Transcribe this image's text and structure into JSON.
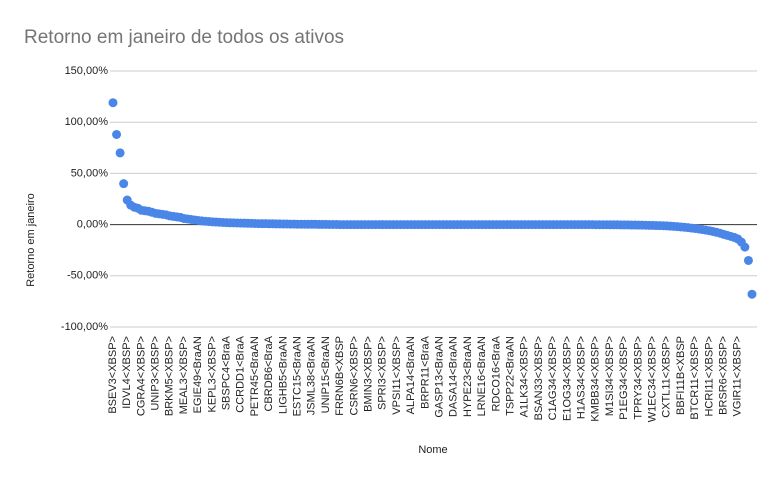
{
  "chart_data": {
    "type": "scatter",
    "title": "Retorno em janeiro de todos os ativos",
    "x_label": "Nome",
    "y_label": "Retorno em janeiro",
    "color": "#4a86e8",
    "grid": true,
    "ylim": [
      -100,
      150
    ],
    "yticks": [
      {
        "value": -100,
        "label": "-100,00%"
      },
      {
        "value": -50,
        "label": "-50,00%"
      },
      {
        "value": 0,
        "label": "0,00%"
      },
      {
        "value": 50,
        "label": "50,00%"
      },
      {
        "value": 100,
        "label": "100,00%"
      },
      {
        "value": 150,
        "label": "150,00%"
      }
    ],
    "categories": [
      "BSEV3<XBSP>",
      null,
      null,
      null,
      "IDVL4<XBSP>",
      null,
      null,
      null,
      "CGRA4<XBSP>",
      null,
      null,
      null,
      "UNIP3<XBSP>",
      null,
      null,
      null,
      "BRKM5<XBSP>",
      null,
      null,
      null,
      "MEAL3<XBSP>",
      null,
      null,
      null,
      "EGIE49<BraAN",
      null,
      null,
      null,
      "KEPL3<XBSP>",
      null,
      null,
      null,
      "SBSPC4<BraA",
      null,
      null,
      null,
      "CCRDD1<BraA",
      null,
      null,
      null,
      "PETR45<BraAN",
      null,
      null,
      null,
      "CBRDB6<BraA",
      null,
      null,
      null,
      "LIGHB5<BraAN",
      null,
      null,
      null,
      "ESTC15<BraAN",
      null,
      null,
      null,
      "JSML38<BraAN",
      null,
      null,
      null,
      "UNIP15<BraAN",
      null,
      null,
      null,
      "FRRN6B<XBSP",
      null,
      null,
      null,
      "CSRN6<XBSP>",
      null,
      null,
      null,
      "BMIN3<XBSP>",
      null,
      null,
      null,
      "SPRI3<XBSP>",
      null,
      null,
      null,
      "VPSI11<XBSP>",
      null,
      null,
      null,
      "ALPA14<BraAN",
      null,
      null,
      null,
      "BRPR11<BraA",
      null,
      null,
      null,
      "GASP13<BraAN",
      null,
      null,
      null,
      "DASA14<BraAN",
      null,
      null,
      null,
      "HYPE23<BraAN",
      null,
      null,
      null,
      "LRNE16<BraAN",
      null,
      null,
      null,
      "RDCO16<BraA",
      null,
      null,
      null,
      "TSPP22<BraAN",
      null,
      null,
      null,
      "A1LK34<XBSP>",
      null,
      null,
      null,
      "BSAN33<XBSP>",
      null,
      null,
      null,
      "C1AG34<XBSP>",
      null,
      null,
      null,
      "E1OG34<XBSP>",
      null,
      null,
      null,
      "H1AS34<XBSP>",
      null,
      null,
      null,
      "KMBB34<XBSP>",
      null,
      null,
      null,
      "M1SI34<XBSP>",
      null,
      null,
      null,
      "P1EG34<XBSP>",
      null,
      null,
      null,
      "TPRY34<XBSP>",
      null,
      null,
      null,
      "W1EC34<XBSP>",
      null,
      null,
      null,
      "CXTL11<XBSP>",
      null,
      null,
      null,
      "BBFI11B<XBSP",
      null,
      null,
      null,
      "BTCR11<XBSP>",
      null,
      null,
      null,
      "HCRI11<XBSP>",
      null,
      null,
      null,
      "BRSR6<XBSP>",
      null,
      null,
      null,
      "VGIR11<XBSP>",
      null,
      null,
      null,
      null
    ],
    "values": [
      119,
      88,
      70,
      40,
      24,
      19,
      17,
      16,
      14,
      13.5,
      13,
      12,
      11,
      10.5,
      10,
      9.5,
      8.5,
      8,
      7.5,
      7,
      6,
      5.5,
      5,
      4.5,
      4,
      3.6,
      3.3,
      3,
      2.7,
      2.5,
      2.3,
      2.1,
      1.9,
      1.8,
      1.7,
      1.6,
      1.5,
      1.4,
      1.3,
      1.2,
      1.1,
      1,
      0.9,
      0.9,
      0.8,
      0.8,
      0.7,
      0.7,
      0.6,
      0.6,
      0.5,
      0.5,
      0.4,
      0.4,
      0.4,
      0.3,
      0.3,
      0.3,
      0.2,
      0.2,
      0.2,
      0.1,
      0.1,
      0.1,
      0,
      0,
      0,
      0,
      0,
      0,
      0,
      0,
      0,
      0,
      0,
      0,
      0,
      0,
      0,
      0,
      0,
      0,
      0,
      0,
      0,
      0,
      0,
      0,
      0,
      0,
      0,
      0,
      0,
      0,
      0,
      0,
      0,
      0,
      0,
      0,
      0,
      0,
      0,
      0,
      0,
      0,
      0,
      0,
      0,
      0,
      0,
      0,
      0,
      0,
      0,
      0,
      0,
      0,
      0,
      0,
      0,
      0,
      0,
      0,
      0,
      0,
      0,
      0,
      0,
      0,
      0,
      0,
      0,
      0,
      0,
      0,
      -0.1,
      -0.1,
      -0.1,
      -0.1,
      -0.2,
      -0.2,
      -0.2,
      -0.3,
      -0.3,
      -0.3,
      -0.4,
      -0.4,
      -0.5,
      -0.5,
      -0.6,
      -0.7,
      -0.8,
      -0.9,
      -1,
      -1.1,
      -1.3,
      -1.5,
      -1.7,
      -2,
      -2.3,
      -2.6,
      -3,
      -3.4,
      -3.8,
      -4.3,
      -4.8,
      -5.4,
      -6,
      -6.7,
      -7.5,
      -8.4,
      -9.5,
      -10.5,
      -11.5,
      -12.5,
      -14,
      -17,
      -22,
      -35,
      -68
    ]
  }
}
